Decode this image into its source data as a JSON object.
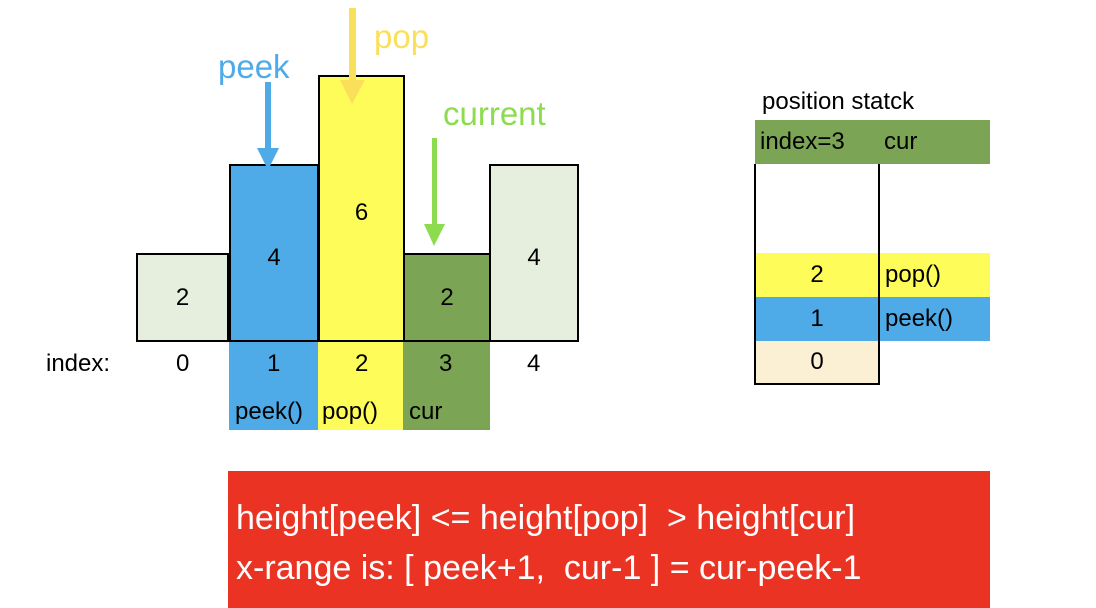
{
  "bars": [
    {
      "index": "0",
      "value": "2",
      "fill": "#e6eede",
      "label_pos": "middle"
    },
    {
      "index": "1",
      "value": "4",
      "fill": "#4eabe8",
      "label_pos": "top"
    },
    {
      "index": "2",
      "value": "6",
      "fill": "#fdfc58",
      "label_pos": "top"
    },
    {
      "index": "3",
      "value": "2",
      "fill": "#7ba554",
      "label_pos": "middle"
    },
    {
      "index": "4",
      "value": "4",
      "fill": "#e6eede",
      "label_pos": "top"
    }
  ],
  "index_label": "index:",
  "role_labels": [
    "peek()",
    "pop()",
    "cur"
  ],
  "arrows": [
    {
      "text": "peek",
      "color": "#4eabe8"
    },
    {
      "text": "pop",
      "color": "#fae05a"
    },
    {
      "text": "current",
      "color": "#8ddc4f"
    }
  ],
  "stack": {
    "title": "position statck",
    "top_entry": {
      "text": "index=3",
      "tag": "cur",
      "color": "#7ba554"
    },
    "rows": [
      {
        "value": "2",
        "tag": "pop()",
        "color": "#fdfc58"
      },
      {
        "value": "1",
        "tag": "peek()",
        "color": "#4eabe8"
      },
      {
        "value": "0",
        "tag": "",
        "color": "#fbf0d3"
      }
    ]
  },
  "formula": {
    "line1": "height[peek] <= height[pop]  > height[cur]",
    "line2": "x-range is: [ peek+1,  cur-1 ] = cur-peek-1",
    "background": "#ea3323"
  }
}
